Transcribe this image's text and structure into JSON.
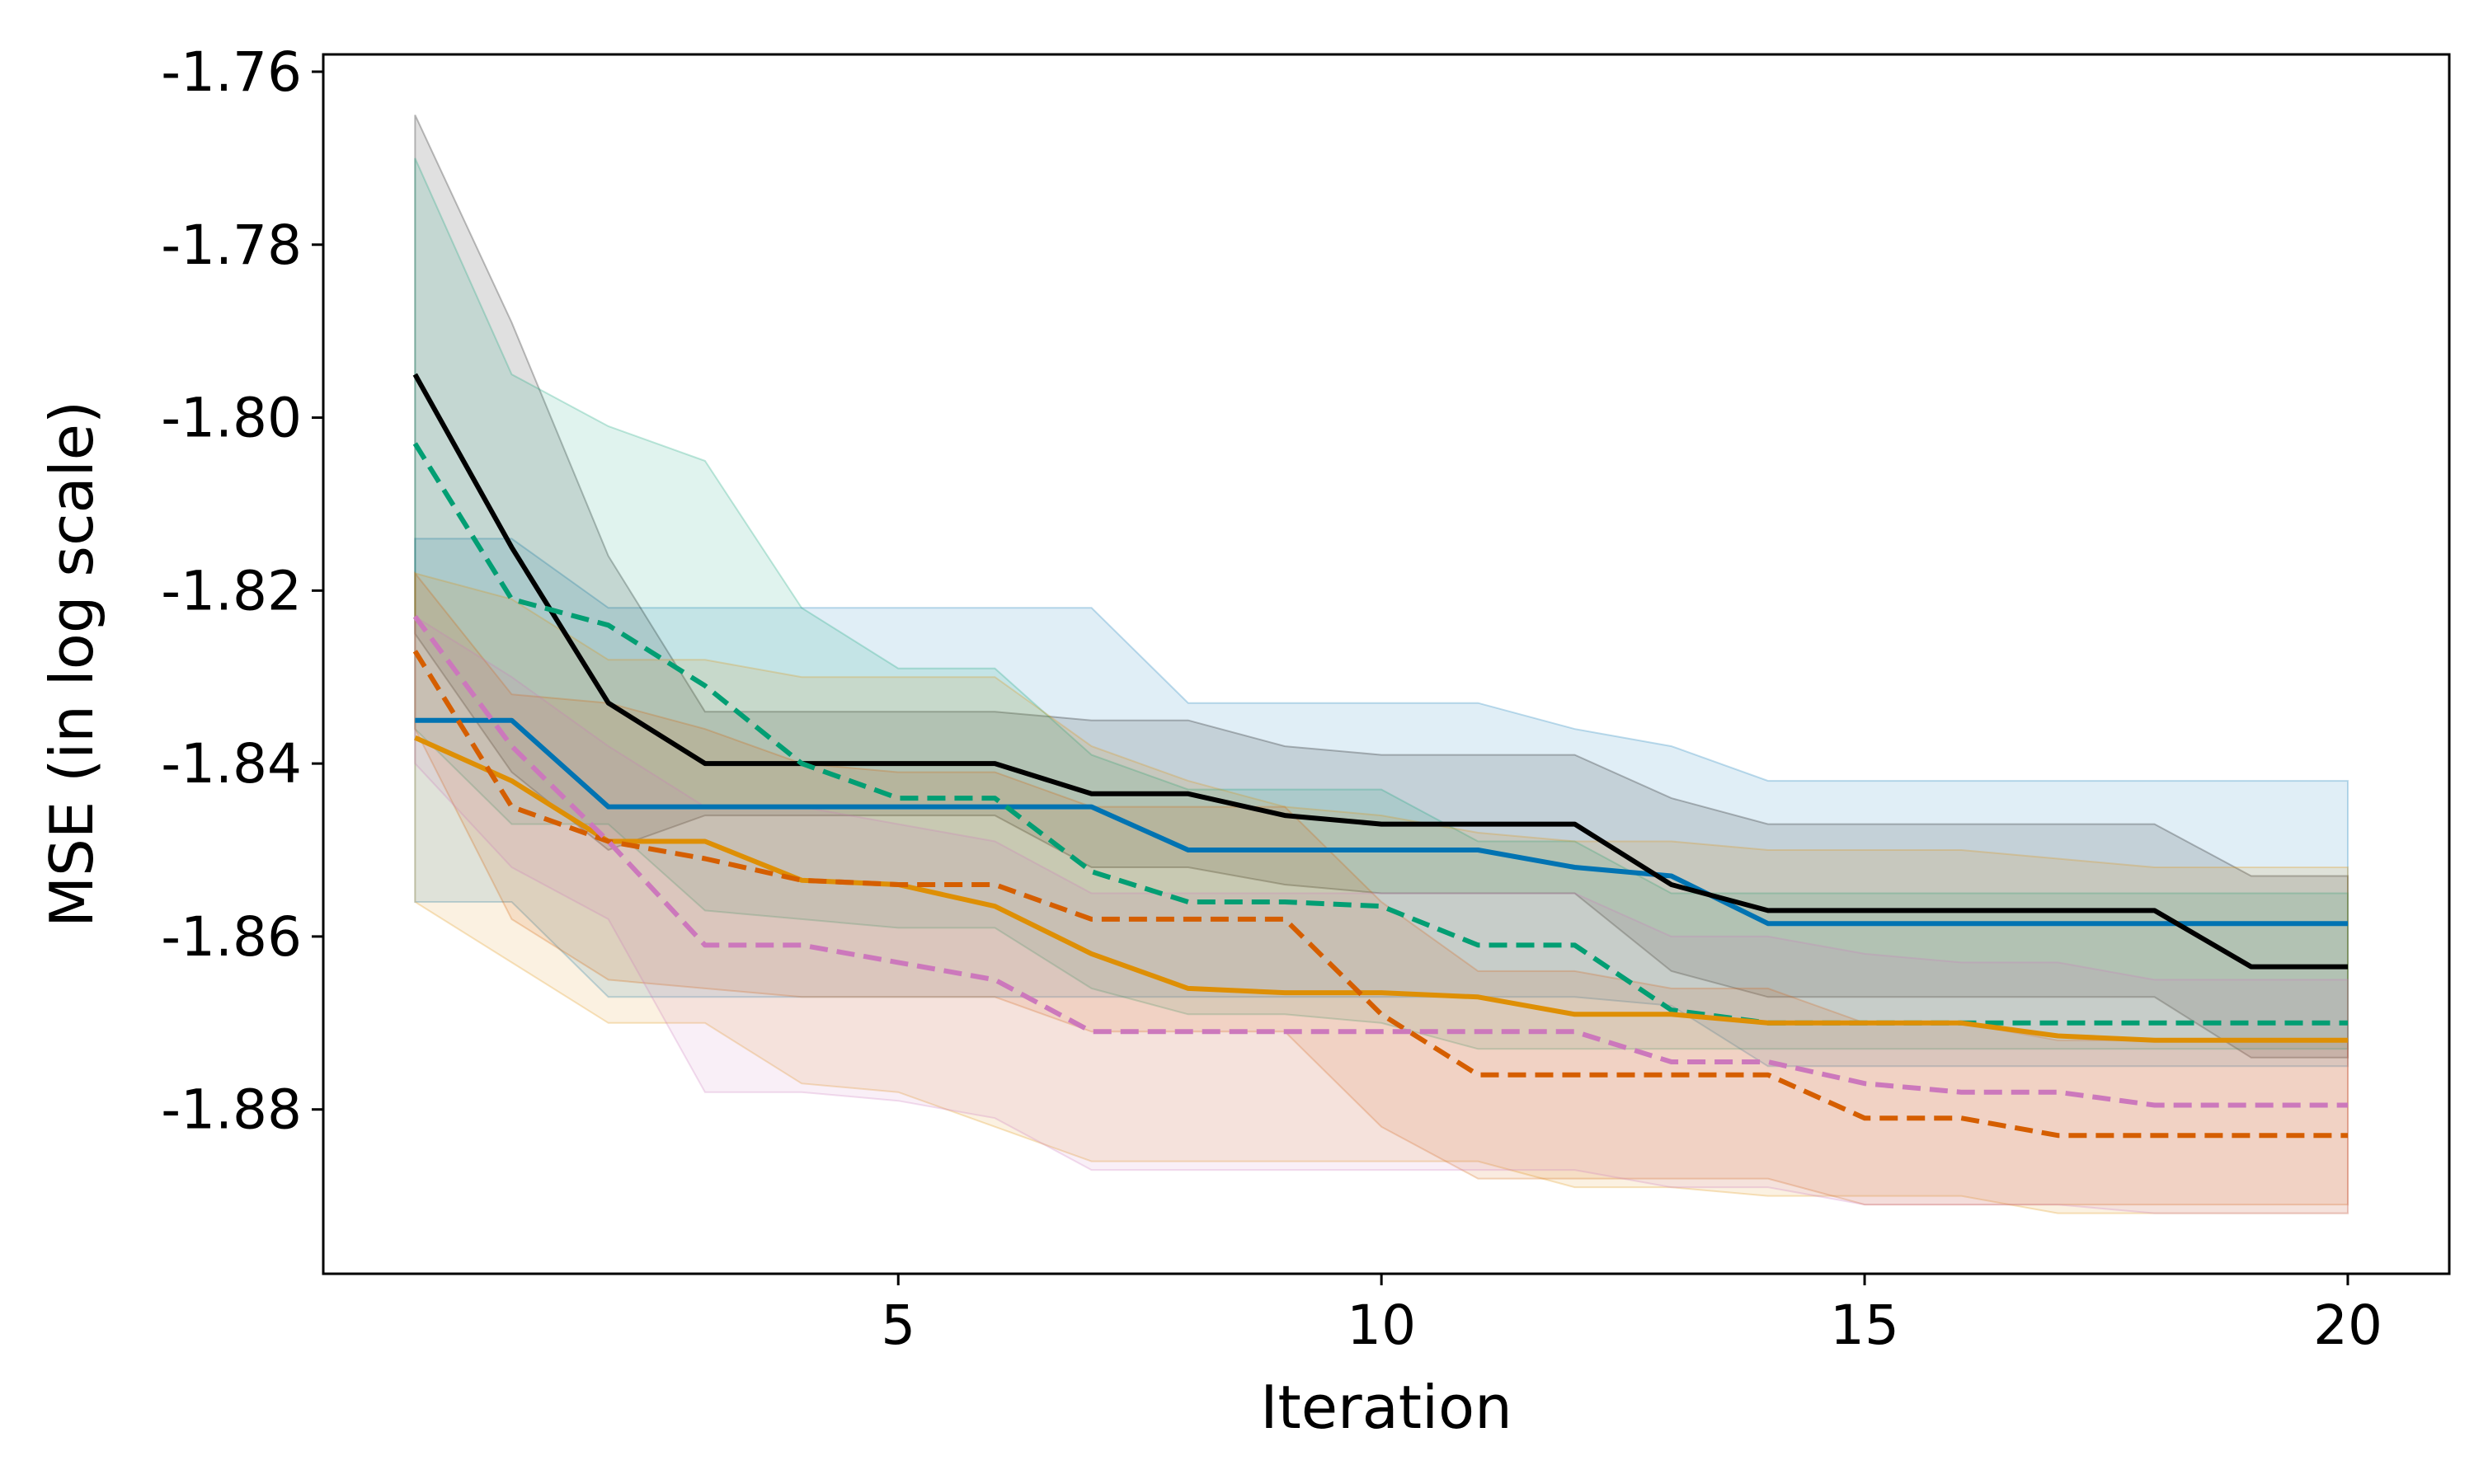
{
  "chart_data": {
    "type": "line",
    "title": "",
    "xlabel": "Iteration",
    "ylabel": "MSE (in log scale)",
    "xlim": [
      -0.95,
      21.05
    ],
    "ylim": [
      -1.899,
      -1.758
    ],
    "xticks": [
      5,
      10,
      15,
      20
    ],
    "yticks": [
      -1.76,
      -1.78,
      -1.8,
      -1.82,
      -1.84,
      -1.86,
      -1.88
    ],
    "ytick_labels": [
      "-1.76",
      "-1.78",
      "-1.80",
      "-1.82",
      "-1.84",
      "-1.86",
      "-1.88"
    ],
    "grid": false,
    "x": [
      0,
      1,
      2,
      3,
      4,
      5,
      6,
      7,
      8,
      9,
      10,
      11,
      12,
      13,
      14,
      15,
      16,
      17,
      18,
      19,
      20
    ],
    "series": [
      {
        "name": "blue",
        "color": "#0173b2",
        "dash": "solid",
        "mean": [
          -1.835,
          -1.835,
          -1.845,
          -1.845,
          -1.845,
          -1.845,
          -1.845,
          -1.845,
          -1.85,
          -1.85,
          -1.85,
          -1.85,
          -1.852,
          -1.853,
          -1.8585,
          -1.8585,
          -1.8585,
          -1.8585,
          -1.8585,
          -1.8585,
          -1.8585
        ],
        "upper": [
          -1.814,
          -1.814,
          -1.822,
          -1.822,
          -1.822,
          -1.822,
          -1.822,
          -1.822,
          -1.833,
          -1.833,
          -1.833,
          -1.833,
          -1.836,
          -1.838,
          -1.842,
          -1.842,
          -1.842,
          -1.842,
          -1.842,
          -1.842,
          -1.842
        ],
        "lower": [
          -1.856,
          -1.856,
          -1.867,
          -1.867,
          -1.867,
          -1.867,
          -1.867,
          -1.867,
          -1.867,
          -1.867,
          -1.867,
          -1.867,
          -1.867,
          -1.868,
          -1.875,
          -1.875,
          -1.875,
          -1.875,
          -1.875,
          -1.875,
          -1.875
        ]
      },
      {
        "name": "black",
        "color": "#000000",
        "dash": "solid",
        "mean": [
          -1.795,
          -1.815,
          -1.833,
          -1.84,
          -1.84,
          -1.84,
          -1.84,
          -1.8435,
          -1.8435,
          -1.846,
          -1.847,
          -1.847,
          -1.847,
          -1.854,
          -1.857,
          -1.857,
          -1.857,
          -1.857,
          -1.857,
          -1.8635,
          -1.8635
        ],
        "upper": [
          -1.765,
          -1.789,
          -1.816,
          -1.834,
          -1.834,
          -1.834,
          -1.834,
          -1.835,
          -1.835,
          -1.838,
          -1.839,
          -1.839,
          -1.839,
          -1.844,
          -1.847,
          -1.847,
          -1.847,
          -1.847,
          -1.847,
          -1.853,
          -1.853
        ],
        "lower": [
          -1.825,
          -1.841,
          -1.85,
          -1.846,
          -1.846,
          -1.846,
          -1.846,
          -1.852,
          -1.852,
          -1.854,
          -1.855,
          -1.855,
          -1.855,
          -1.864,
          -1.867,
          -1.867,
          -1.867,
          -1.867,
          -1.867,
          -1.874,
          -1.874
        ]
      },
      {
        "name": "green",
        "color": "#029e73",
        "dash": "dashed",
        "mean": [
          -1.803,
          -1.821,
          -1.824,
          -1.831,
          -1.84,
          -1.844,
          -1.844,
          -1.8525,
          -1.856,
          -1.856,
          -1.8565,
          -1.861,
          -1.861,
          -1.8685,
          -1.87,
          -1.87,
          -1.87,
          -1.87,
          -1.87,
          -1.87,
          -1.87
        ],
        "upper": [
          -1.77,
          -1.795,
          -1.801,
          -1.805,
          -1.822,
          -1.829,
          -1.829,
          -1.839,
          -1.843,
          -1.843,
          -1.843,
          -1.849,
          -1.849,
          -1.855,
          -1.855,
          -1.855,
          -1.855,
          -1.855,
          -1.855,
          -1.855,
          -1.855
        ],
        "lower": [
          -1.836,
          -1.847,
          -1.847,
          -1.857,
          -1.858,
          -1.859,
          -1.859,
          -1.866,
          -1.869,
          -1.869,
          -1.87,
          -1.873,
          -1.873,
          -1.873,
          -1.873,
          -1.873,
          -1.873,
          -1.873,
          -1.873,
          -1.873,
          -1.873
        ]
      },
      {
        "name": "orange",
        "color": "#de8f05",
        "dash": "solid",
        "mean": [
          -1.837,
          -1.842,
          -1.849,
          -1.849,
          -1.8535,
          -1.854,
          -1.8565,
          -1.862,
          -1.866,
          -1.8665,
          -1.8665,
          -1.867,
          -1.869,
          -1.869,
          -1.87,
          -1.87,
          -1.87,
          -1.8715,
          -1.872,
          -1.872,
          -1.872
        ],
        "upper": [
          -1.818,
          -1.821,
          -1.828,
          -1.828,
          -1.83,
          -1.83,
          -1.83,
          -1.838,
          -1.842,
          -1.845,
          -1.846,
          -1.848,
          -1.849,
          -1.849,
          -1.85,
          -1.85,
          -1.85,
          -1.851,
          -1.852,
          -1.852,
          -1.852
        ],
        "lower": [
          -1.856,
          -1.863,
          -1.87,
          -1.87,
          -1.877,
          -1.878,
          -1.882,
          -1.886,
          -1.886,
          -1.886,
          -1.886,
          -1.886,
          -1.889,
          -1.889,
          -1.89,
          -1.89,
          -1.89,
          -1.892,
          -1.892,
          -1.892,
          -1.892
        ]
      },
      {
        "name": "vermillion",
        "color": "#d55e00",
        "dash": "dashed",
        "mean": [
          -1.827,
          -1.845,
          -1.849,
          -1.851,
          -1.8535,
          -1.854,
          -1.854,
          -1.858,
          -1.858,
          -1.858,
          -1.869,
          -1.876,
          -1.876,
          -1.876,
          -1.876,
          -1.881,
          -1.881,
          -1.883,
          -1.883,
          -1.883,
          -1.883
        ],
        "upper": [
          -1.818,
          -1.832,
          -1.833,
          -1.836,
          -1.84,
          -1.841,
          -1.841,
          -1.845,
          -1.845,
          -1.845,
          -1.856,
          -1.864,
          -1.864,
          -1.866,
          -1.866,
          -1.87,
          -1.87,
          -1.872,
          -1.872,
          -1.872,
          -1.872
        ],
        "lower": [
          -1.836,
          -1.858,
          -1.865,
          -1.866,
          -1.867,
          -1.867,
          -1.867,
          -1.871,
          -1.871,
          -1.871,
          -1.882,
          -1.888,
          -1.888,
          -1.888,
          -1.888,
          -1.891,
          -1.891,
          -1.891,
          -1.891,
          -1.891,
          -1.891
        ]
      },
      {
        "name": "pink",
        "color": "#cc78bc",
        "dash": "dashed",
        "mean": [
          -1.823,
          -1.838,
          -1.849,
          -1.861,
          -1.861,
          -1.863,
          -1.865,
          -1.871,
          -1.871,
          -1.871,
          -1.871,
          -1.871,
          -1.871,
          -1.8745,
          -1.8745,
          -1.877,
          -1.878,
          -1.878,
          -1.8795,
          -1.8795,
          -1.8795
        ],
        "upper": [
          -1.823,
          -1.83,
          -1.838,
          -1.845,
          -1.845,
          -1.847,
          -1.849,
          -1.855,
          -1.855,
          -1.855,
          -1.855,
          -1.855,
          -1.855,
          -1.86,
          -1.86,
          -1.862,
          -1.863,
          -1.863,
          -1.865,
          -1.865,
          -1.865
        ],
        "lower": [
          -1.84,
          -1.852,
          -1.858,
          -1.878,
          -1.878,
          -1.879,
          -1.881,
          -1.887,
          -1.887,
          -1.887,
          -1.887,
          -1.887,
          -1.887,
          -1.889,
          -1.889,
          -1.891,
          -1.891,
          -1.891,
          -1.892,
          -1.892,
          -1.892
        ]
      }
    ]
  }
}
